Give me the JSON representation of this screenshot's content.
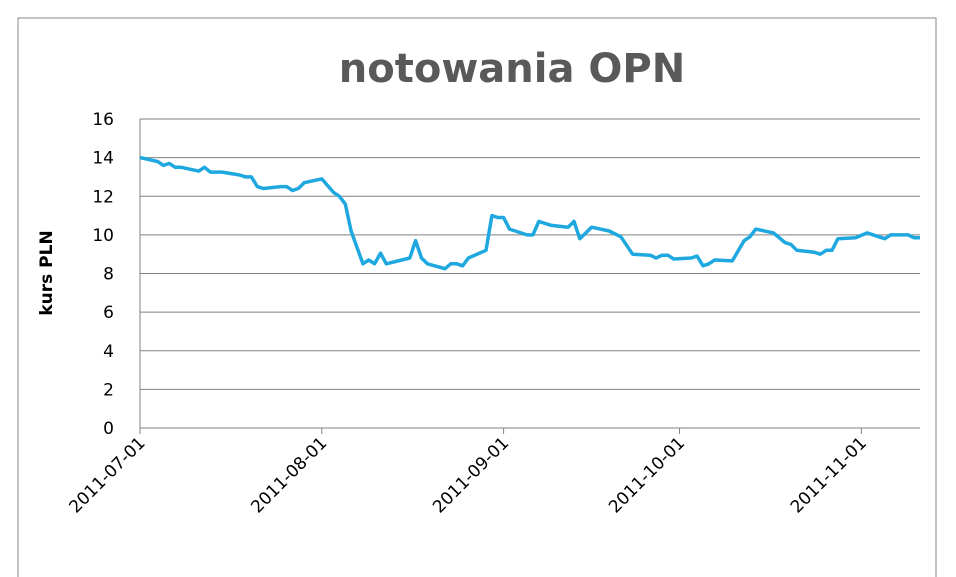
{
  "chart_data": {
    "type": "line",
    "title": "notowania OPN",
    "y_label": "kurs PLN",
    "x": [
      "2011-07-01",
      "2011-07-04",
      "2011-07-05",
      "2011-07-06",
      "2011-07-07",
      "2011-07-08",
      "2011-07-11",
      "2011-07-12",
      "2011-07-13",
      "2011-07-15",
      "2011-07-18",
      "2011-07-19",
      "2011-07-20",
      "2011-07-21",
      "2011-07-22",
      "2011-07-25",
      "2011-07-26",
      "2011-07-27",
      "2011-07-28",
      "2011-07-29",
      "2011-08-01",
      "2011-08-03",
      "2011-08-04",
      "2011-08-05",
      "2011-08-06",
      "2011-08-08",
      "2011-08-09",
      "2011-08-10",
      "2011-08-11",
      "2011-08-12",
      "2011-08-16",
      "2011-08-17",
      "2011-08-18",
      "2011-08-19",
      "2011-08-22",
      "2011-08-23",
      "2011-08-24",
      "2011-08-25",
      "2011-08-26",
      "2011-08-29",
      "2011-08-30",
      "2011-08-31",
      "2011-09-01",
      "2011-09-02",
      "2011-09-05",
      "2011-09-06",
      "2011-09-07",
      "2011-09-09",
      "2011-09-12",
      "2011-09-13",
      "2011-09-14",
      "2011-09-16",
      "2011-09-19",
      "2011-09-21",
      "2011-09-23",
      "2011-09-26",
      "2011-09-27",
      "2011-09-28",
      "2011-09-29",
      "2011-09-30",
      "2011-10-03",
      "2011-10-04",
      "2011-10-05",
      "2011-10-06",
      "2011-10-07",
      "2011-10-10",
      "2011-10-12",
      "2011-10-13",
      "2011-10-14",
      "2011-10-17",
      "2011-10-19",
      "2011-10-20",
      "2011-10-21",
      "2011-10-24",
      "2011-10-25",
      "2011-10-26",
      "2011-10-27",
      "2011-10-28",
      "2011-10-31",
      "2011-11-02",
      "2011-11-04",
      "2011-11-05",
      "2011-11-06",
      "2011-11-09",
      "2011-11-10",
      "2011-11-11"
    ],
    "series": [
      {
        "name": "kurs",
        "color": "#1fa8e0",
        "values": [
          14.0,
          13.8,
          13.6,
          13.7,
          13.5,
          13.5,
          13.3,
          13.5,
          13.25,
          13.25,
          13.1,
          13.0,
          13.0,
          12.5,
          12.4,
          12.5,
          12.5,
          12.3,
          12.4,
          12.7,
          12.9,
          12.2,
          12.0,
          11.6,
          10.2,
          8.5,
          8.7,
          8.5,
          9.05,
          8.5,
          8.8,
          9.7,
          8.8,
          8.5,
          8.25,
          8.5,
          8.5,
          8.4,
          8.8,
          9.2,
          11.0,
          10.9,
          10.9,
          10.3,
          10.0,
          10.0,
          10.7,
          10.5,
          10.4,
          10.7,
          9.8,
          10.4,
          10.2,
          9.9,
          9.0,
          8.95,
          8.8,
          8.95,
          8.95,
          8.75,
          8.8,
          8.9,
          8.4,
          8.5,
          8.7,
          8.65,
          9.7,
          9.9,
          10.3,
          10.1,
          9.6,
          9.5,
          9.2,
          9.1,
          9.0,
          9.2,
          9.2,
          9.8,
          9.85,
          10.1,
          9.9,
          9.8,
          10.0,
          10.0,
          9.85,
          9.85
        ]
      }
    ],
    "xlim": [
      "2011-07-01",
      "2011-11-11"
    ],
    "xticks": [
      "2011-07-01",
      "2011-08-01",
      "2011-09-01",
      "2011-10-01",
      "2011-11-01"
    ],
    "ylim": [
      0,
      16
    ],
    "yticks": [
      0,
      2,
      4,
      6,
      8,
      10,
      12,
      14,
      16
    ],
    "grid": true
  }
}
